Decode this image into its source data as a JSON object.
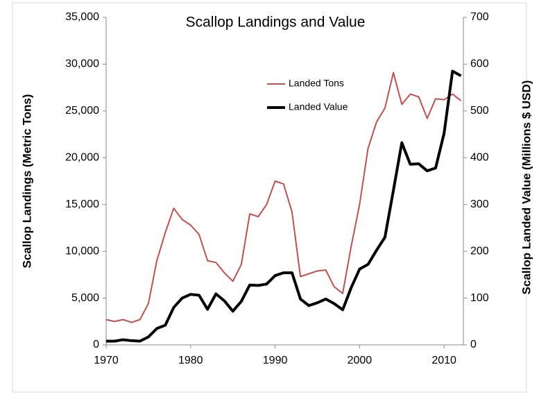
{
  "chart_data": {
    "type": "line",
    "title": "Scallop Landings and Value",
    "ylabel": "Scallop Landings (Metric Tons)",
    "y2label": "Scallop Landed Value (Millions  $ USD)",
    "x": [
      1970,
      1971,
      1972,
      1973,
      1974,
      1975,
      1976,
      1977,
      1978,
      1979,
      1980,
      1981,
      1982,
      1983,
      1984,
      1985,
      1986,
      1987,
      1988,
      1989,
      1990,
      1991,
      1992,
      1993,
      1994,
      1995,
      1996,
      1997,
      1998,
      1999,
      2000,
      2001,
      2002,
      2003,
      2004,
      2005,
      2006,
      2007,
      2008,
      2009,
      2010,
      2011,
      2012
    ],
    "series": [
      {
        "name": "Landed Tons",
        "color": "#c0504d",
        "axis": "y",
        "values": [
          2700,
          2500,
          2700,
          2400,
          2700,
          4400,
          9000,
          12000,
          14600,
          13400,
          12800,
          11800,
          9000,
          8800,
          7700,
          6800,
          8600,
          14000,
          13700,
          15000,
          17500,
          17200,
          14200,
          7300,
          7600,
          7900,
          8000,
          6200,
          5500,
          10500,
          15000,
          21000,
          23800,
          25300,
          29100,
          25700,
          26800,
          26500,
          24200,
          26300,
          26200,
          26800,
          26100
        ]
      },
      {
        "name": "Landed Value",
        "color": "#000000",
        "axis": "y2",
        "values": [
          8,
          8,
          11,
          9,
          8,
          17,
          35,
          42,
          80,
          100,
          108,
          106,
          76,
          109,
          94,
          72,
          93,
          128,
          127,
          130,
          148,
          154,
          154,
          98,
          84,
          90,
          98,
          88,
          75,
          122,
          162,
          172,
          202,
          230,
          330,
          432,
          386,
          387,
          372,
          378,
          452,
          585,
          575
        ]
      }
    ],
    "xlim": [
      1970,
      2012.5
    ],
    "xticks": [
      1970,
      1980,
      1990,
      2000,
      2010
    ],
    "ylim": [
      0,
      35000
    ],
    "yticks": [
      0,
      {
        "value": 5000,
        "label": "5,000"
      },
      {
        "value": 10000,
        "label": "10,000"
      },
      {
        "value": 15000,
        "label": "15,000"
      },
      {
        "value": 20000,
        "label": "20,000"
      },
      {
        "value": 25000,
        "label": "25,000"
      },
      {
        "value": 30000,
        "label": "30,000"
      },
      {
        "value": 35000,
        "label": "35,000"
      }
    ],
    "y2lim": [
      0,
      700
    ],
    "y2ticks": [
      0,
      100,
      200,
      300,
      400,
      500,
      600,
      700
    ],
    "grid": false,
    "legend": "upper center"
  }
}
